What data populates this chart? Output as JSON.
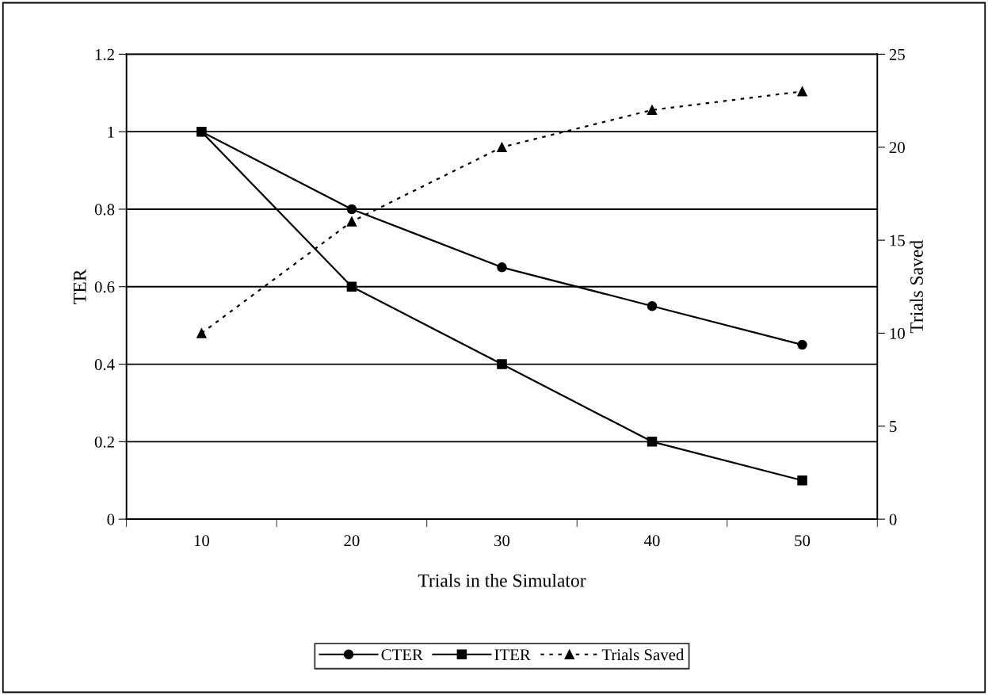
{
  "chart_data": {
    "type": "line",
    "xlabel": "Trials in the Simulator",
    "ylabel": "TER",
    "y2label": "Trials Saved",
    "categories": [
      "10",
      "20",
      "30",
      "40",
      "50"
    ],
    "series": [
      {
        "name": "CTER",
        "color": "#000000",
        "marker": "circle",
        "line_style": "solid",
        "values": [
          1,
          0.8,
          0.65,
          0.55,
          0.45
        ]
      },
      {
        "name": "ITER",
        "color": "#000000",
        "marker": "square",
        "line_style": "solid",
        "values": [
          1,
          0.6,
          0.4,
          0.2,
          0.1
        ]
      },
      {
        "name": "Trials Saved",
        "color": "#000000",
        "marker": "triangle",
        "line_style": "dotted",
        "axis": "y2",
        "values": [
          10,
          16,
          20,
          22,
          23
        ]
      }
    ],
    "ylim": [
      0,
      1.2
    ],
    "yticks": [
      0,
      0.2,
      0.4,
      0.6,
      0.8,
      1,
      1.2
    ],
    "y2lim": [
      0,
      25
    ],
    "y2ticks": [
      0,
      5,
      10,
      15,
      20,
      25
    ],
    "grid": "y",
    "legend": "bottom"
  }
}
